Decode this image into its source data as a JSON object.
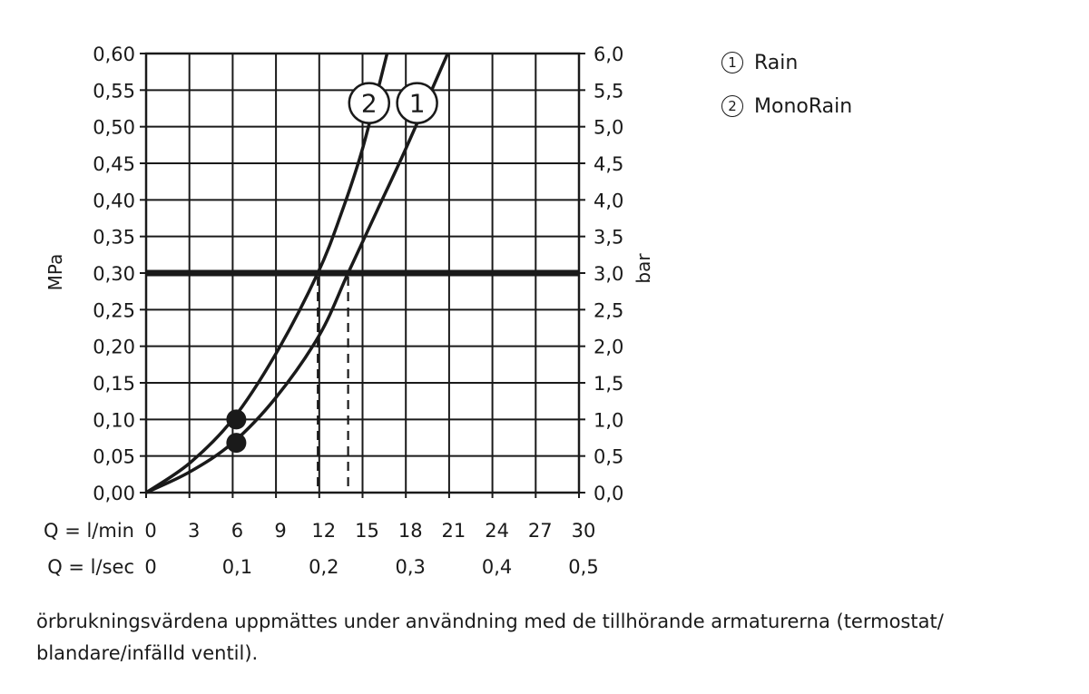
{
  "chart_data": {
    "type": "line",
    "xlabel_rows": [
      {
        "label": "Q = l/min",
        "ticks": [
          "0",
          "3",
          "6",
          "9",
          "12",
          "15",
          "18",
          "21",
          "24",
          "27",
          "30"
        ],
        "values": [
          0,
          3,
          6,
          9,
          12,
          15,
          18,
          21,
          24,
          27,
          30
        ]
      },
      {
        "label": "Q = l/sec",
        "ticks": [
          "0",
          "0,1",
          "0,2",
          "0,3",
          "0,4",
          "0,5"
        ],
        "values": [
          0,
          6,
          12,
          18,
          24,
          30
        ]
      }
    ],
    "ylabel_left": "MPa",
    "ylabel_right": "bar",
    "yticks_left": [
      "0,00",
      "0,05",
      "0,10",
      "0,15",
      "0,20",
      "0,25",
      "0,30",
      "0,35",
      "0,40",
      "0,45",
      "0,50",
      "0,55",
      "0,60"
    ],
    "yticks_right": [
      "0,0",
      "0,5",
      "1,0",
      "1,5",
      "2,0",
      "2,5",
      "3,0",
      "3,5",
      "4,0",
      "4,5",
      "5,0",
      "5,5",
      "6,0"
    ],
    "xlim": [
      0,
      30
    ],
    "ylim": [
      0,
      0.6
    ],
    "grid": true,
    "reference_line": {
      "y": 0.3
    },
    "series": [
      {
        "name": "Rain",
        "marker_label": "1",
        "x": [
          0,
          3,
          6,
          9,
          12,
          14,
          16,
          18,
          20.9
        ],
        "y": [
          0,
          0.028,
          0.068,
          0.13,
          0.215,
          0.3,
          0.385,
          0.47,
          0.6
        ],
        "point": {
          "x": 6,
          "y": 0.068
        },
        "dashed_x": 14
      },
      {
        "name": "MonoRain",
        "marker_label": "2",
        "x": [
          0,
          3,
          6,
          9,
          11.9,
          13.5,
          15,
          16.7
        ],
        "y": [
          0,
          0.04,
          0.1,
          0.19,
          0.3,
          0.38,
          0.47,
          0.6
        ],
        "point": {
          "x": 6,
          "y": 0.1
        },
        "dashed_x": 11.9
      }
    ]
  },
  "legend": [
    {
      "symbol": "1",
      "label": "Rain"
    },
    {
      "symbol": "2",
      "label": "MonoRain"
    }
  ],
  "footnote": "örbrukningsvärdena uppmättes under användning med de tillhörande armaturerna (termostat/ blandare/infälld ventil).",
  "colors": {
    "ink": "#1a1a1a",
    "grid": "#1a1a1a"
  }
}
